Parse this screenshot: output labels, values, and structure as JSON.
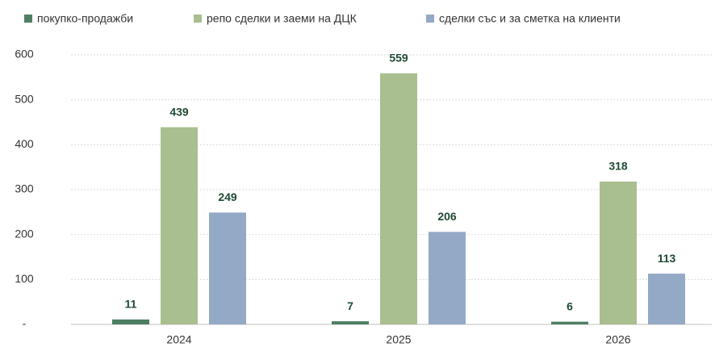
{
  "chart_data": {
    "type": "bar",
    "categories": [
      "2024",
      "2025",
      "2026"
    ],
    "series": [
      {
        "name": "покупко-продажби",
        "color": "#4e7f62",
        "values": [
          11,
          7,
          6
        ]
      },
      {
        "name": "репо сделки и заеми на ДЦК",
        "color": "#a9bf8f",
        "values": [
          439,
          559,
          318
        ]
      },
      {
        "name": "сделки със и за сметка на клиенти",
        "color": "#94a9c5",
        "values": [
          249,
          206,
          113
        ]
      }
    ],
    "ylim": [
      0,
      600
    ],
    "yticks": [
      {
        "value": 0,
        "label": "-"
      },
      100,
      200,
      300,
      400,
      500,
      600
    ],
    "grid": true,
    "legend": "top"
  }
}
